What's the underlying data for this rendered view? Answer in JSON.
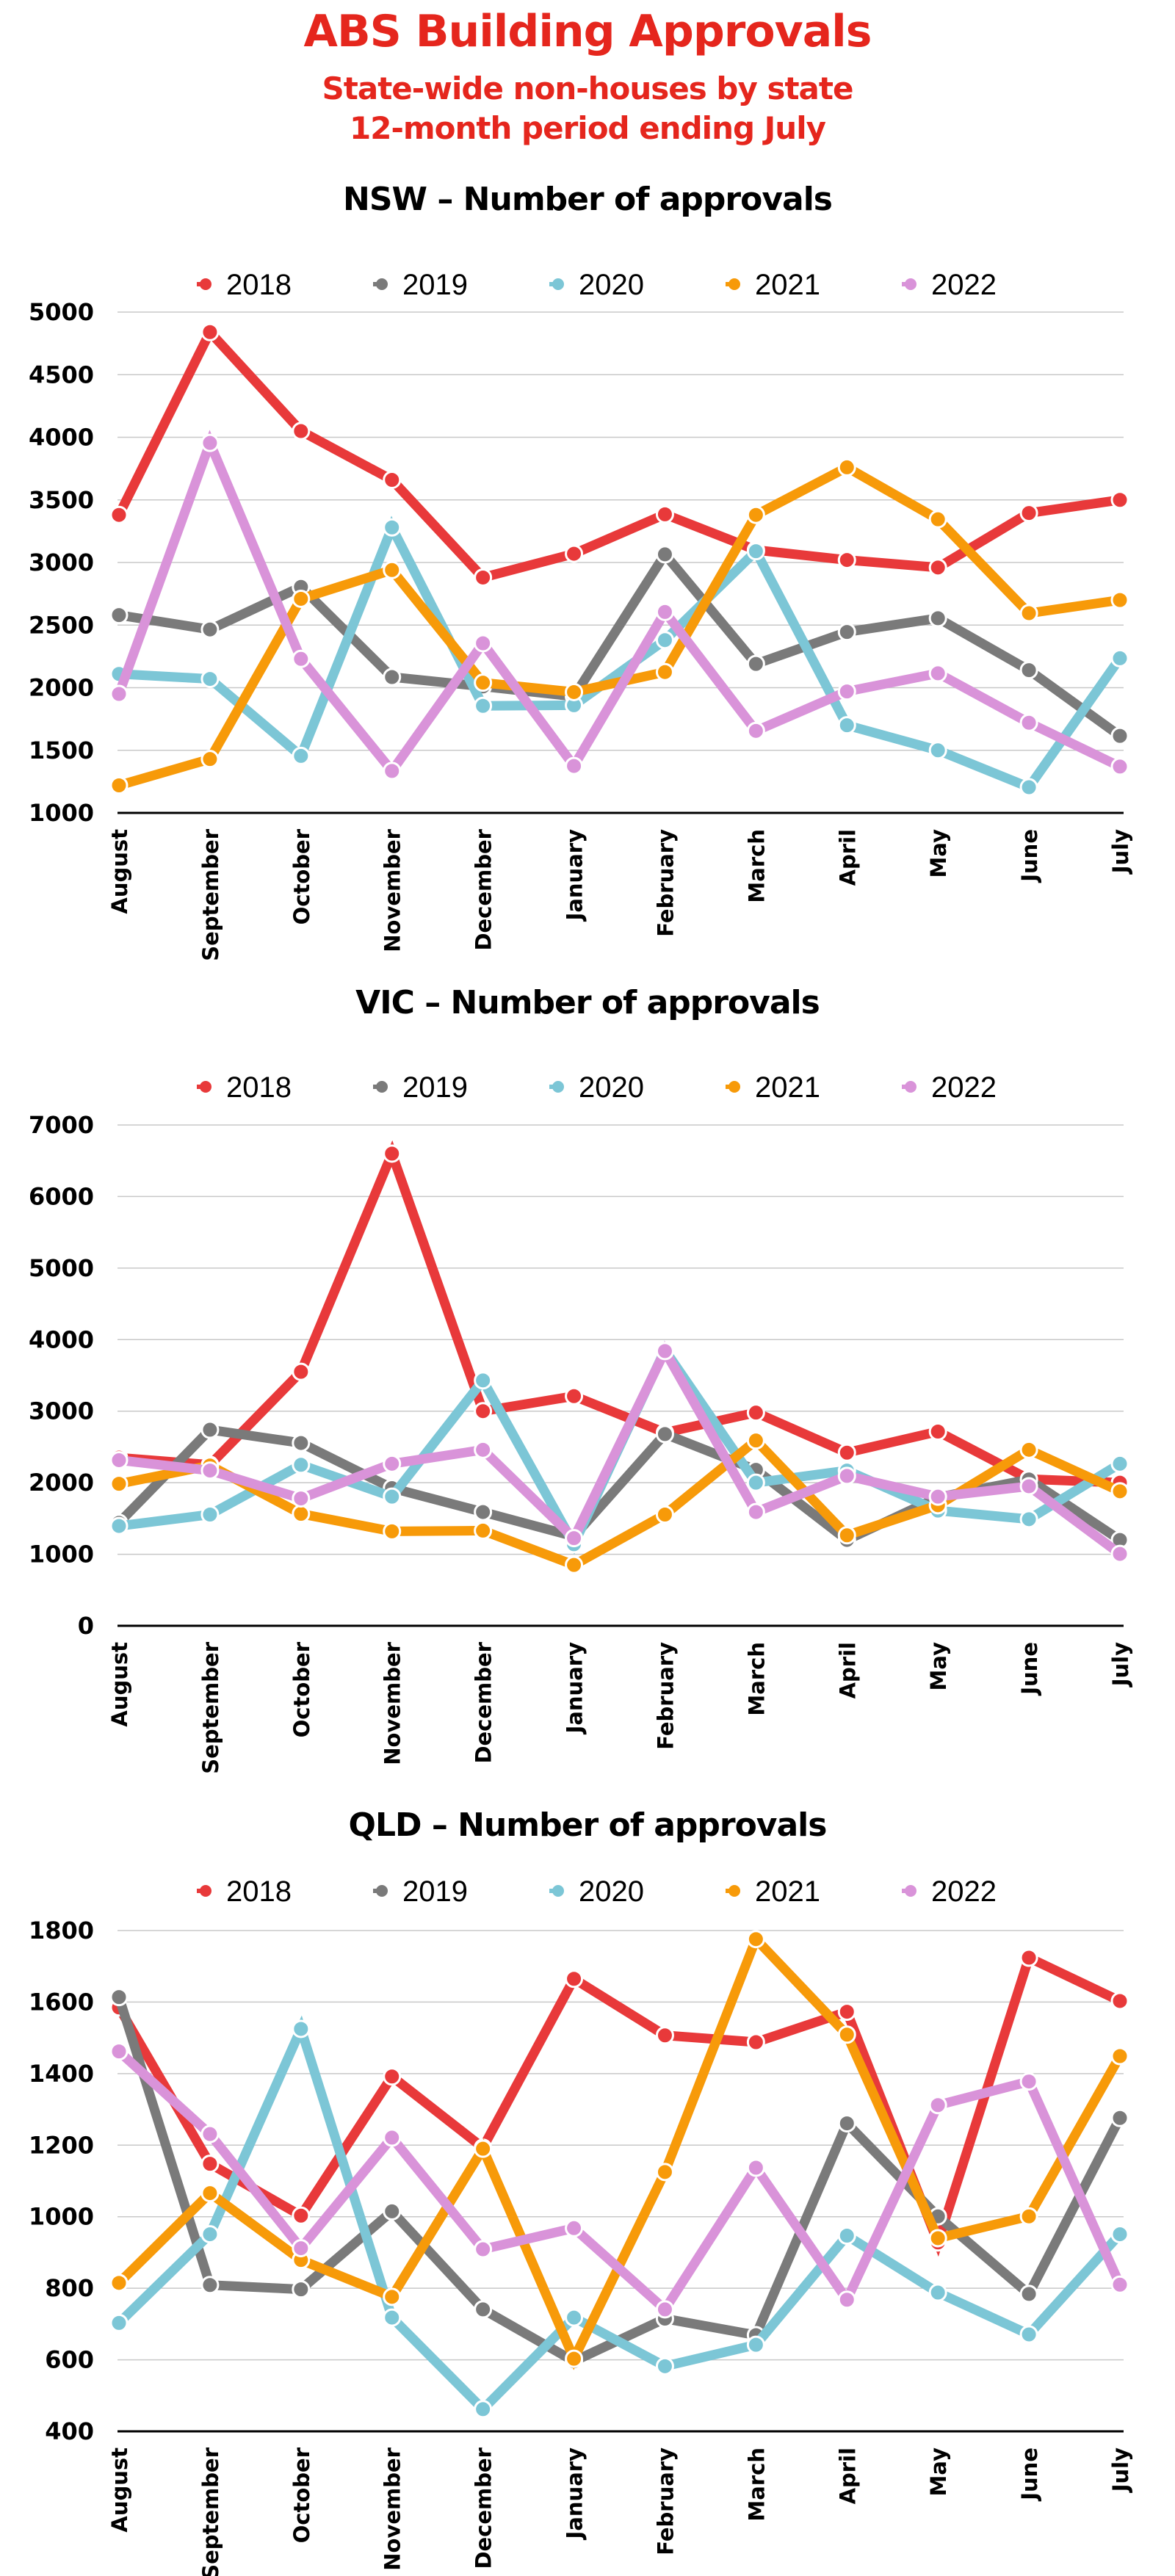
{
  "header": {
    "title": "ABS Building Approvals",
    "subtitle_line1": "State-wide non-houses by state",
    "subtitle_line2": "12-month period ending July"
  },
  "colors": {
    "title": "#e5261d",
    "2018": "#e8393a",
    "2019": "#7a7a7a",
    "2020": "#7cc6d6",
    "2021": "#f79a09",
    "2022": "#d993d9",
    "gridline": "#c8c8c8",
    "axis": "#000000"
  },
  "chart_data": [
    {
      "type": "line",
      "title": "NSW – Number of approvals",
      "xlabel": "",
      "ylabel": "",
      "categories": [
        "August",
        "September",
        "October",
        "November",
        "December",
        "January",
        "February",
        "March",
        "April",
        "May",
        "June",
        "July"
      ],
      "yticks": [
        1000,
        1500,
        2000,
        2500,
        3000,
        3500,
        4000,
        4500,
        5000
      ],
      "ylim": [
        1000,
        5000
      ],
      "grid": true,
      "legend": "top-center",
      "series": [
        {
          "name": "2018",
          "values": [
            3380,
            4840,
            4050,
            3660,
            2880,
            3070,
            3385,
            3100,
            3020,
            2960,
            3395,
            3500
          ]
        },
        {
          "name": "2019",
          "values": [
            2580,
            2465,
            2805,
            2085,
            2010,
            1930,
            3065,
            2190,
            2445,
            2555,
            2140,
            1615
          ]
        },
        {
          "name": "2020",
          "values": [
            2110,
            2070,
            1455,
            3280,
            1855,
            1860,
            2380,
            3090,
            1700,
            1500,
            1205,
            2235
          ]
        },
        {
          "name": "2021",
          "values": [
            1220,
            1430,
            2710,
            2940,
            2040,
            1965,
            2125,
            3380,
            3760,
            3345,
            2595,
            2700
          ]
        },
        {
          "name": "2022",
          "values": [
            1950,
            3955,
            2230,
            1335,
            2355,
            1375,
            2605,
            1655,
            1970,
            2115,
            1720,
            1370
          ]
        }
      ]
    },
    {
      "type": "line",
      "title": "VIC – Number of approvals",
      "xlabel": "",
      "ylabel": "",
      "categories": [
        "August",
        "September",
        "October",
        "November",
        "December",
        "January",
        "February",
        "March",
        "April",
        "May",
        "June",
        "July"
      ],
      "yticks": [
        0,
        1000,
        2000,
        3000,
        4000,
        5000,
        6000,
        7000
      ],
      "ylim": [
        0,
        7000
      ],
      "grid": true,
      "legend": "top-center",
      "series": [
        {
          "name": "2018",
          "values": [
            2350,
            2250,
            3550,
            6600,
            3000,
            3210,
            2700,
            2980,
            2420,
            2715,
            2050,
            2000
          ]
        },
        {
          "name": "2019",
          "values": [
            1440,
            2740,
            2555,
            1925,
            1590,
            1250,
            2680,
            2180,
            1200,
            1795,
            2045,
            1200
          ]
        },
        {
          "name": "2020",
          "values": [
            1395,
            1555,
            2250,
            1805,
            3430,
            1140,
            3855,
            2000,
            2170,
            1610,
            1490,
            2265
          ]
        },
        {
          "name": "2021",
          "values": [
            1985,
            2240,
            1565,
            1320,
            1330,
            850,
            1555,
            2590,
            1265,
            1685,
            2460,
            1880
          ]
        },
        {
          "name": "2022",
          "values": [
            2315,
            2170,
            1780,
            2265,
            2460,
            1225,
            3840,
            1590,
            2095,
            1805,
            1950,
            1005
          ]
        }
      ]
    },
    {
      "type": "line",
      "title": "QLD – Number of approvals",
      "xlabel": "",
      "ylabel": "",
      "categories": [
        "August",
        "September",
        "October",
        "November",
        "December",
        "January",
        "February",
        "March",
        "April",
        "May",
        "June",
        "July"
      ],
      "yticks": [
        400,
        600,
        800,
        1000,
        1200,
        1400,
        1600,
        1800
      ],
      "ylim": [
        400,
        1800
      ],
      "grid": true,
      "legend": "top-center",
      "series": [
        {
          "name": "2018",
          "values": [
            1585,
            1148,
            1003,
            1392,
            1193,
            1665,
            1507,
            1488,
            1573,
            928,
            1724,
            1603
          ]
        },
        {
          "name": "2019",
          "values": [
            1614,
            809,
            797,
            1015,
            741,
            596,
            715,
            669,
            1261,
            1001,
            784,
            1276
          ]
        },
        {
          "name": "2020",
          "values": [
            703,
            951,
            1525,
            718,
            462,
            718,
            582,
            642,
            947,
            788,
            671,
            951
          ]
        },
        {
          "name": "2021",
          "values": [
            815,
            1066,
            879,
            776,
            1190,
            603,
            1125,
            1776,
            1509,
            940,
            1001,
            1449
          ]
        },
        {
          "name": "2022",
          "values": [
            1462,
            1231,
            912,
            1221,
            909,
            968,
            741,
            1137,
            768,
            1312,
            1378,
            810
          ]
        }
      ]
    }
  ]
}
